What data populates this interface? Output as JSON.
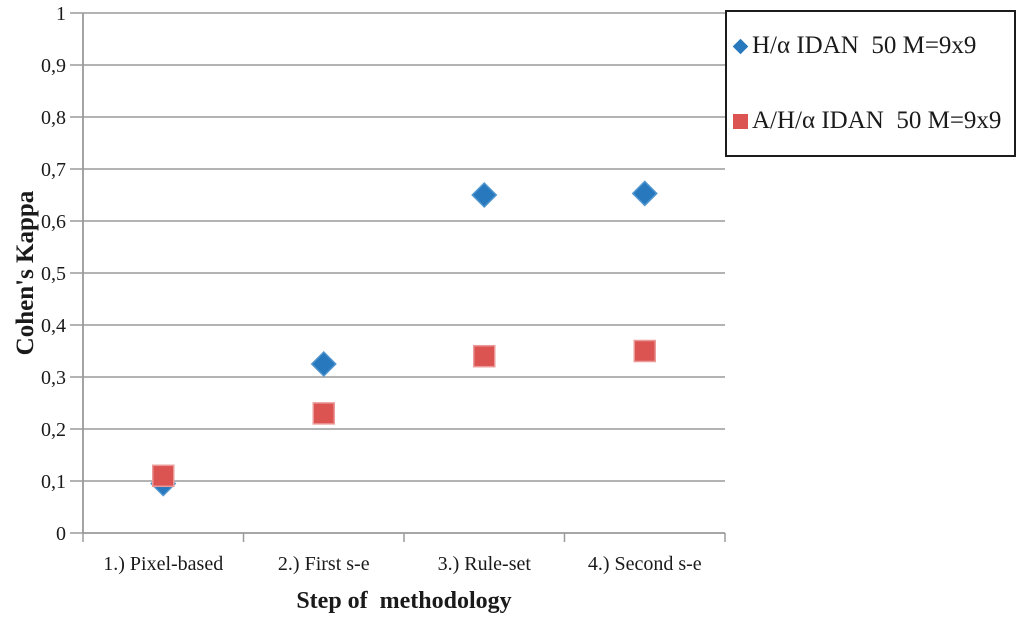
{
  "figure": {
    "background": "#ffffff",
    "text_color": "#1a1a1a",
    "axis_color": "#9a9a9a"
  },
  "chart_data": {
    "type": "scatter",
    "title": "",
    "xlabel": "Step of  methodology",
    "ylabel": "Cohen's Kappa",
    "categories": [
      "1.) Pixel-based",
      "2.) First s-e",
      "3.) Rule-set",
      "4.) Second s-e"
    ],
    "ylim": [
      0,
      1
    ],
    "grid": "horizontal",
    "legend_position": "top-right",
    "y_ticks": [
      {
        "value": 0,
        "label": "0"
      },
      {
        "value": 0.1,
        "label": "0,1"
      },
      {
        "value": 0.2,
        "label": "0,2"
      },
      {
        "value": 0.3,
        "label": "0,3"
      },
      {
        "value": 0.4,
        "label": "0,4"
      },
      {
        "value": 0.5,
        "label": "0,5"
      },
      {
        "value": 0.6,
        "label": "0,6"
      },
      {
        "value": 0.7,
        "label": "0,7"
      },
      {
        "value": 0.8,
        "label": "0,8"
      },
      {
        "value": 0.9,
        "label": "0,9"
      },
      {
        "value": 1,
        "label": "1"
      }
    ],
    "series": [
      {
        "name": "H/α IDAN  50 M=9x9",
        "marker": "diamond",
        "color": "#2878BE",
        "edge_color": "#5096cf",
        "values": [
          0.095,
          0.325,
          0.65,
          0.653
        ]
      },
      {
        "name": "A/H/α IDAN  50 M=9x9",
        "marker": "square",
        "color": "#DC5452",
        "edge_color": "#ea9a98",
        "values": [
          0.11,
          0.23,
          0.34,
          0.35
        ]
      }
    ]
  }
}
